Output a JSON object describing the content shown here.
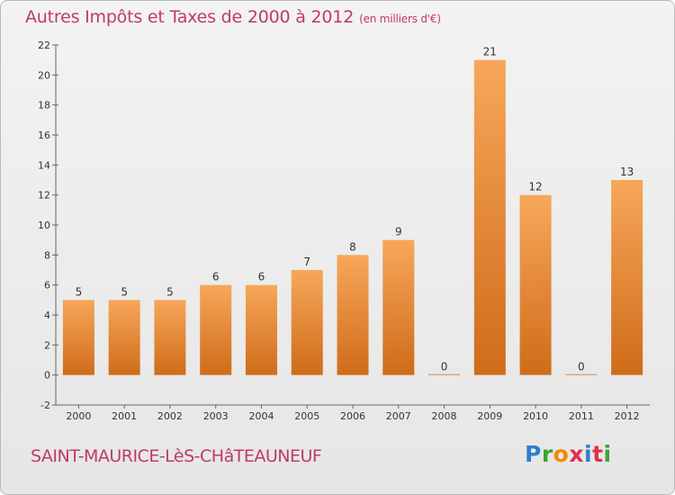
{
  "header": {
    "title": "Autres Impôts et Taxes de 2000 à 2012",
    "unit": "(en milliers d'€)"
  },
  "footer": {
    "place": "SAINT-MAURICE-LèS-CHâTEAUNEUF",
    "logo": "Proxiti",
    "logo_colors": [
      "#2b7fd0",
      "#3aa535",
      "#f08a00",
      "#e0304a",
      "#2b7fd0",
      "#e0304a",
      "#3aa535"
    ]
  },
  "colors": {
    "title": "#c03a68",
    "bar_top": "#f7a75a",
    "bar_bottom": "#cf6c19",
    "axis": "#666666"
  },
  "chart_data": {
    "type": "bar",
    "title": "Autres Impôts et Taxes de 2000 à 2012",
    "xlabel": "",
    "ylabel": "",
    "categories": [
      "2000",
      "2001",
      "2002",
      "2003",
      "2004",
      "2005",
      "2006",
      "2007",
      "2008",
      "2009",
      "2010",
      "2011",
      "2012"
    ],
    "values": [
      5,
      5,
      5,
      6,
      6,
      7,
      8,
      9,
      0,
      21,
      12,
      0,
      13
    ],
    "ylim": [
      -2,
      22
    ],
    "yticks": [
      -2,
      0,
      2,
      4,
      6,
      8,
      10,
      12,
      14,
      16,
      18,
      20,
      22
    ],
    "grid": false,
    "data_labels": true
  }
}
